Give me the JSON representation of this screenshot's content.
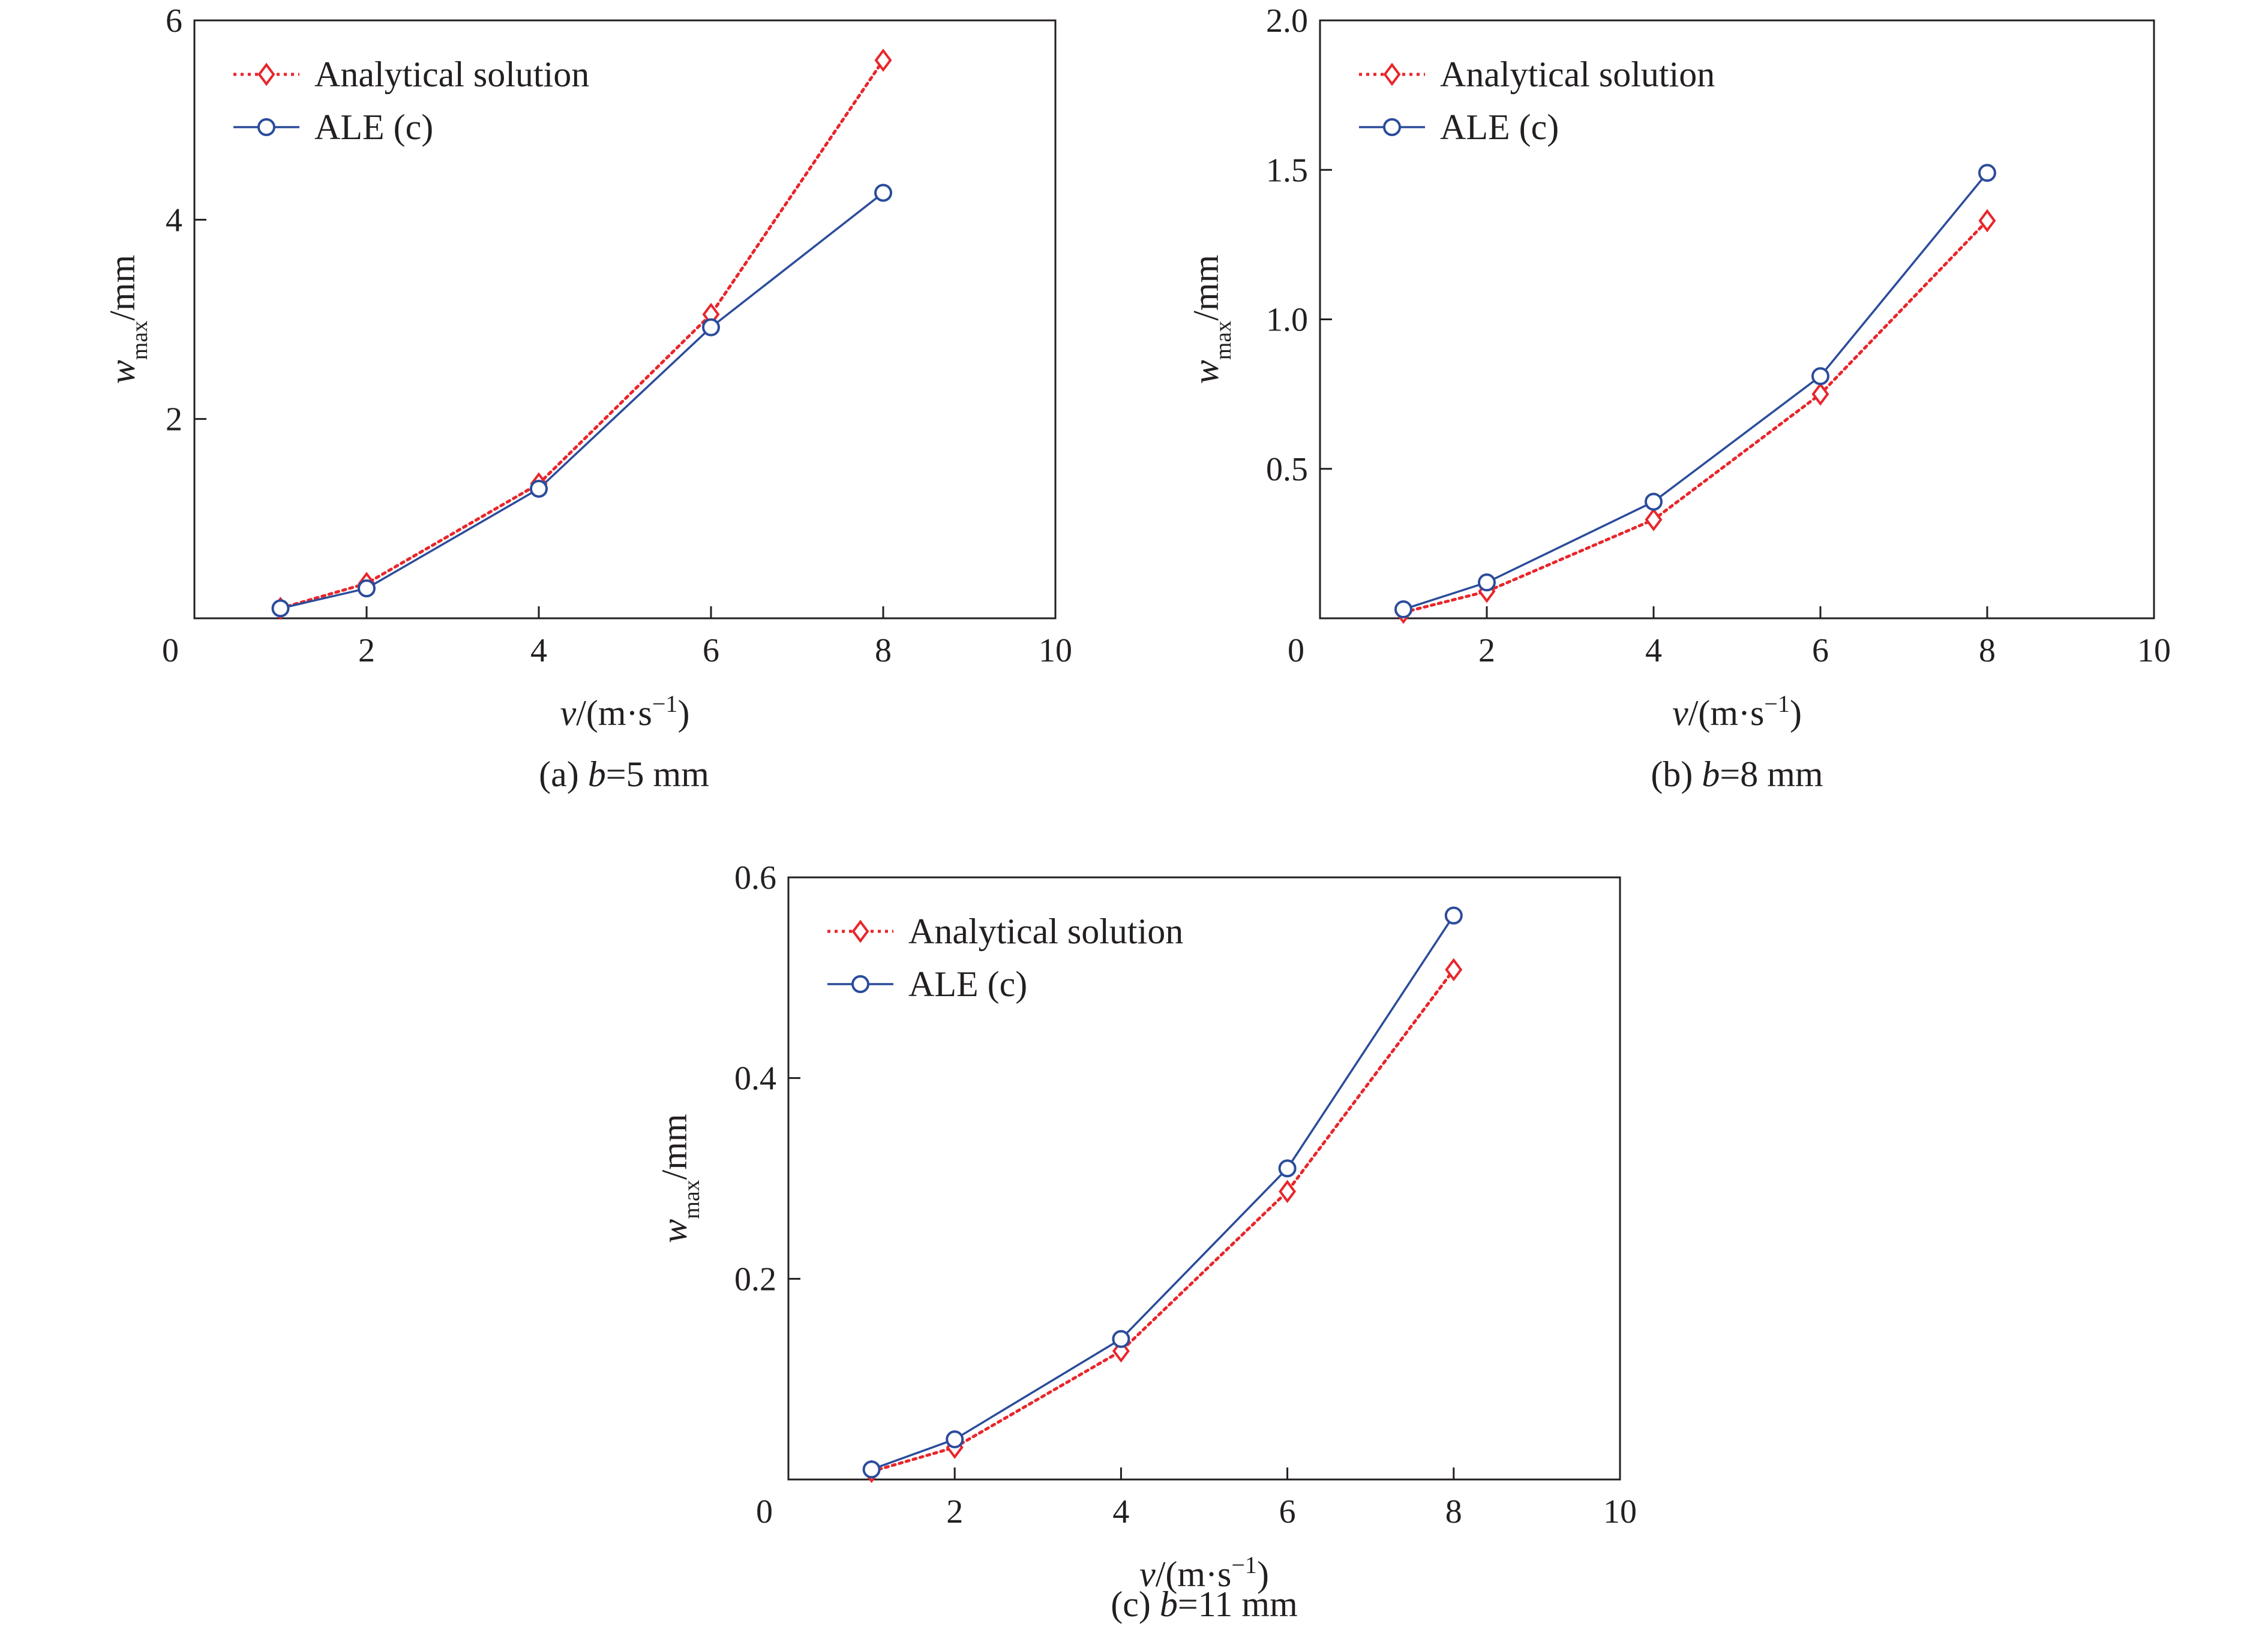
{
  "colors": {
    "analytical": "#e8262b",
    "ale": "#2b4c9b",
    "axis": "#231f20"
  },
  "chart_data": [
    {
      "type": "line",
      "caption": {
        "pre": "(a) ",
        "var": "b",
        "post": "=5 mm"
      },
      "xlabel": {
        "var": "v",
        "unit": "/(m·s",
        "sup": "−1",
        "close": ")"
      },
      "ylabel": {
        "var": "w",
        "sub": "max",
        "unit": "/mm"
      },
      "xlim": [
        0,
        10
      ],
      "ylim": [
        0,
        6
      ],
      "xticks": [
        "0",
        "2",
        "4",
        "6",
        "8",
        "10"
      ],
      "yticks": [
        "2",
        "4",
        "6"
      ],
      "x": [
        1,
        2,
        4,
        6,
        8
      ],
      "series": [
        {
          "name": "Analytical solution",
          "marker": "diamond",
          "style": "dotted",
          "values": [
            0.1,
            0.35,
            1.35,
            3.05,
            5.6
          ]
        },
        {
          "name": "ALE (c)",
          "marker": "circle",
          "style": "solid",
          "values": [
            0.1,
            0.3,
            1.3,
            2.92,
            4.27
          ]
        }
      ],
      "legend": "top-left"
    },
    {
      "type": "line",
      "caption": {
        "pre": "(b) ",
        "var": "b",
        "post": "=8 mm"
      },
      "xlabel": {
        "var": "v",
        "unit": "/(m·s",
        "sup": "−1",
        "close": ")"
      },
      "ylabel": {
        "var": "w",
        "sub": "max",
        "unit": "/mm"
      },
      "xlim": [
        0,
        10
      ],
      "ylim": [
        0,
        2.0
      ],
      "xticks": [
        "0",
        "2",
        "4",
        "6",
        "8",
        "10"
      ],
      "yticks": [
        "0.5",
        "1.0",
        "1.5",
        "2.0"
      ],
      "x": [
        1,
        2,
        4,
        6,
        8
      ],
      "series": [
        {
          "name": "Analytical solution",
          "marker": "diamond",
          "style": "dotted",
          "values": [
            0.02,
            0.09,
            0.33,
            0.75,
            1.33
          ]
        },
        {
          "name": "ALE (c)",
          "marker": "circle",
          "style": "solid",
          "values": [
            0.03,
            0.12,
            0.39,
            0.81,
            1.49
          ]
        }
      ],
      "legend": "top-left"
    },
    {
      "type": "line",
      "caption": {
        "pre": "(c) ",
        "var": "b",
        "post": "=11 mm"
      },
      "xlabel": {
        "var": "v",
        "unit": "/(m·s",
        "sup": "−1",
        "close": ")"
      },
      "ylabel": {
        "var": "w",
        "sub": "max",
        "unit": "/mm"
      },
      "xlim": [
        0,
        10
      ],
      "ylim": [
        0,
        0.6
      ],
      "xticks": [
        "0",
        "2",
        "4",
        "6",
        "8",
        "10"
      ],
      "yticks": [
        "0.2",
        "0.4",
        "0.6"
      ],
      "x": [
        1,
        2,
        4,
        6,
        8
      ],
      "series": [
        {
          "name": "Analytical solution",
          "marker": "diamond",
          "style": "dotted",
          "values": [
            0.008,
            0.032,
            0.128,
            0.287,
            0.508
          ]
        },
        {
          "name": "ALE (c)",
          "marker": "circle",
          "style": "solid",
          "values": [
            0.01,
            0.04,
            0.14,
            0.31,
            0.562
          ]
        }
      ],
      "legend": "top-left"
    }
  ]
}
